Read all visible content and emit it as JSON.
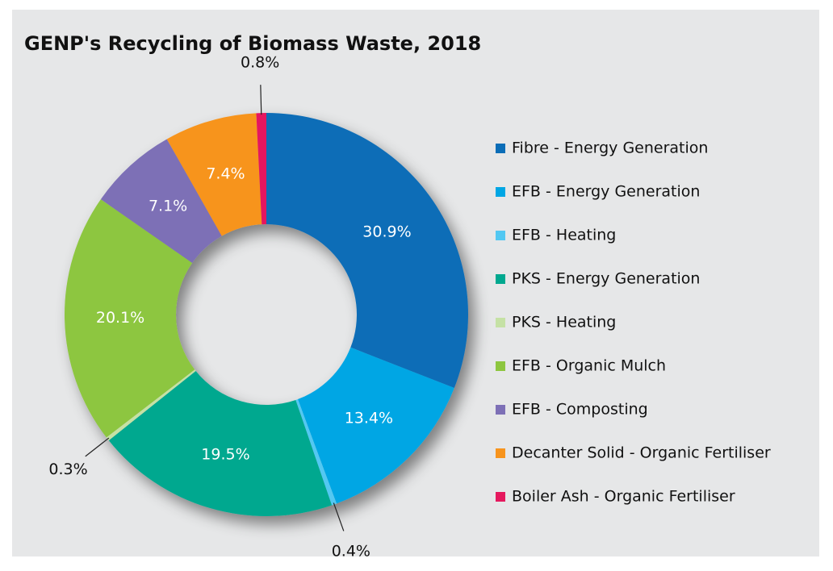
{
  "chart_data": {
    "type": "donut",
    "title": "GENP's Recycling of Biomass Waste, 2018",
    "categories": [
      "Fibre - Energy Generation",
      "EFB - Energy Generation",
      "EFB - Heating",
      "PKS - Energy Generation",
      "PKS - Heating",
      "EFB - Organic Mulch",
      "EFB - Composting",
      "Decanter Solid - Organic Fertiliser",
      "Boiler Ash - Organic Fertiliser"
    ],
    "values": [
      30.9,
      13.4,
      0.4,
      19.5,
      0.3,
      20.1,
      7.1,
      7.4,
      0.8
    ],
    "value_labels": [
      "30.9%",
      "13.4%",
      "0.4%",
      "19.5%",
      "0.3%",
      "20.1%",
      "7.1%",
      "7.4%",
      "0.8%"
    ],
    "colors": [
      "#0b6db7",
      "#00a6e4",
      "#52c8f2",
      "#00a88f",
      "#c5e1a5",
      "#8dc63f",
      "#7d70b6",
      "#f7941d",
      "#e5195e"
    ],
    "legend": "right"
  }
}
